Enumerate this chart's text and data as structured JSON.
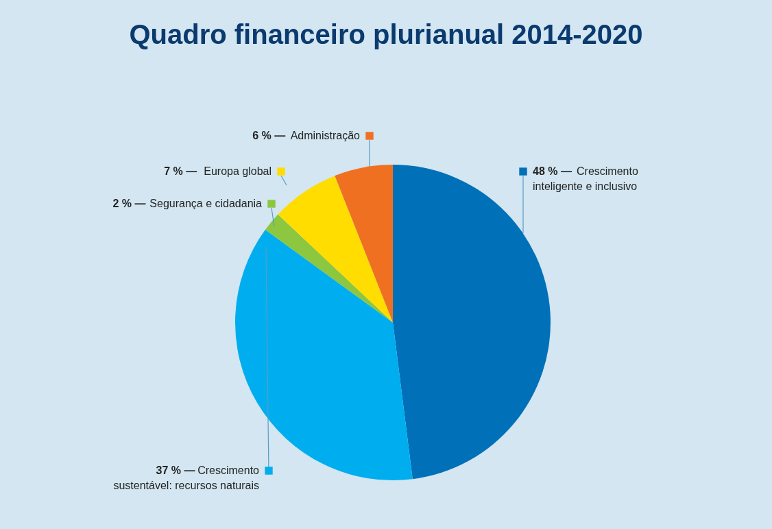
{
  "chart_data": {
    "type": "pie",
    "title": "Quadro financeiro plurianual 2014-2020",
    "categories": [
      "Crescimento inteligente e inclusivo",
      "Crescimento sustentável: recursos naturais",
      "Segurança e cidadania",
      "Europa global",
      "Administração"
    ],
    "values": [
      48,
      37,
      2,
      7,
      6
    ],
    "colors": [
      "#0070b8",
      "#00aeef",
      "#8dc63f",
      "#ffdd00",
      "#f07022"
    ],
    "value_labels": [
      "48 % —",
      "37 % —",
      "2 % —",
      "7 % —",
      "6 % —"
    ],
    "legend": "left"
  }
}
